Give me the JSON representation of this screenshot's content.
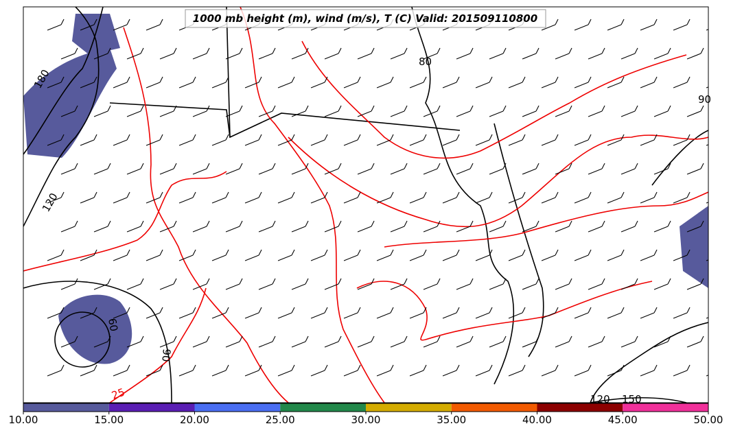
{
  "title": "1000 mb height (m), wind (m/s), T (C) Valid: 201509110800",
  "contour_labels": [
    "180",
    "120",
    "60",
    "90",
    "25",
    "120",
    "150",
    "80",
    "90"
  ],
  "colorbar": {
    "range": [
      10,
      50
    ],
    "bounds": [
      10,
      15,
      20,
      25,
      30,
      35,
      40,
      45,
      50
    ],
    "colors": [
      "#575a9c",
      "#5a1eb4",
      "#4a6ef2",
      "#22884a",
      "#d4ac00",
      "#f25a00",
      "#8c0000",
      "#f0309a"
    ],
    "ticks": [
      {
        "value": 10,
        "label": "10.00"
      },
      {
        "value": 15,
        "label": "15.00"
      },
      {
        "value": 20,
        "label": "20.00"
      },
      {
        "value": 25,
        "label": "25.00"
      },
      {
        "value": 30,
        "label": "30.00"
      },
      {
        "value": 35,
        "label": "35.00"
      },
      {
        "value": 40,
        "label": "40.00"
      },
      {
        "value": 45,
        "label": "45.00"
      },
      {
        "value": 50,
        "label": "50.00"
      }
    ]
  }
}
